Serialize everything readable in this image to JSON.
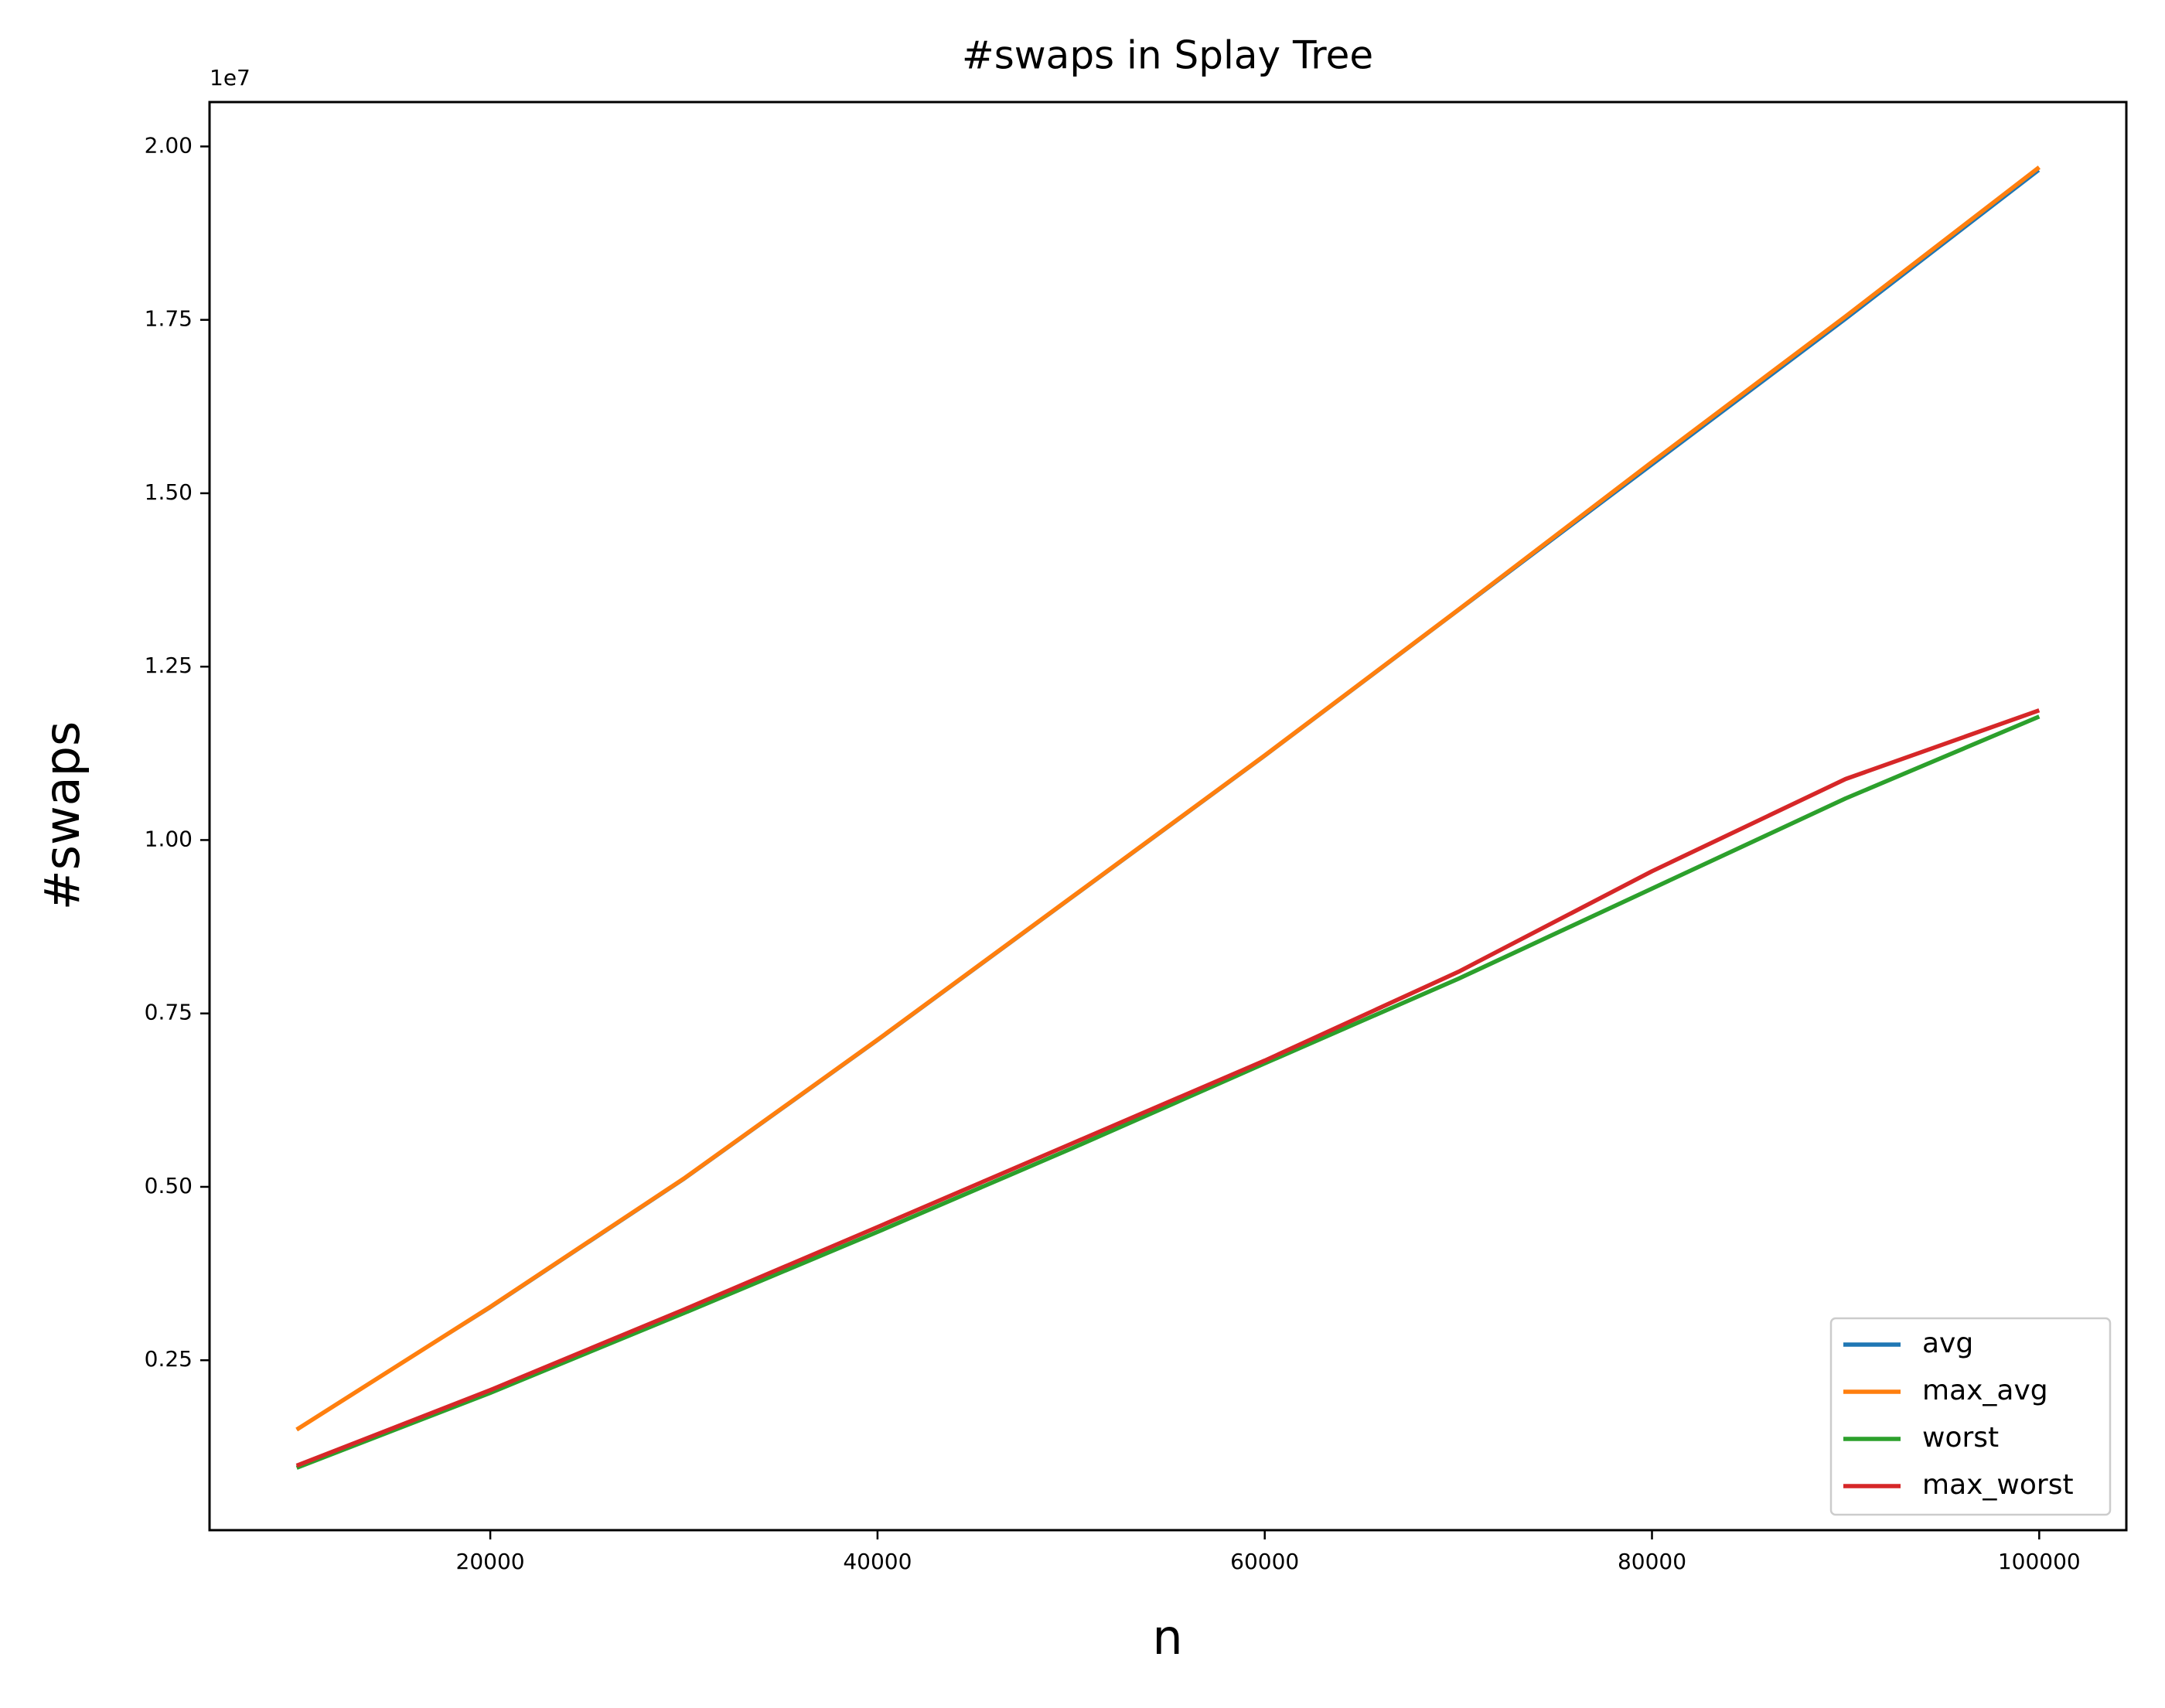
{
  "chart_data": {
    "type": "line",
    "title": "#swaps in Splay Tree",
    "x_label": "n",
    "y_label": "#swaps",
    "y_offset_text": "1e7",
    "x": [
      10000,
      20000,
      30000,
      40000,
      50000,
      60000,
      70000,
      80000,
      90000,
      100000
    ],
    "series": [
      {
        "name": "avg",
        "color": "#1f77b4",
        "values": [
          0.15,
          0.325,
          0.51,
          0.71,
          0.915,
          1.12,
          1.33,
          1.54,
          1.75,
          1.965
        ]
      },
      {
        "name": "max_avg",
        "color": "#ff7f0e",
        "values": [
          0.15,
          0.327,
          0.512,
          0.712,
          0.917,
          1.122,
          1.332,
          1.545,
          1.755,
          1.97
        ]
      },
      {
        "name": "worst",
        "color": "#2ca02c",
        "values": [
          0.095,
          0.203,
          0.318,
          0.435,
          0.555,
          0.678,
          0.8,
          0.93,
          1.06,
          1.178
        ]
      },
      {
        "name": "max_worst",
        "color": "#d62728",
        "values": [
          0.098,
          0.207,
          0.323,
          0.442,
          0.562,
          0.682,
          0.81,
          0.955,
          1.088,
          1.187
        ]
      }
    ],
    "xlim": [
      5500,
      104500
    ],
    "xticks": [
      20000,
      40000,
      60000,
      80000,
      100000
    ],
    "ylim": [
      0.005,
      2.064
    ],
    "yticks": [
      {
        "value": 0.25,
        "label": "0.25"
      },
      {
        "value": 0.5,
        "label": "0.50"
      },
      {
        "value": 0.75,
        "label": "0.75"
      },
      {
        "value": 1,
        "label": "1.00"
      },
      {
        "value": 1.25,
        "label": "1.25"
      },
      {
        "value": 1.5,
        "label": "1.50"
      },
      {
        "value": 1.75,
        "label": "1.75"
      },
      {
        "value": 2,
        "label": "2.00"
      }
    ],
    "grid": false,
    "legend": "lower right"
  }
}
